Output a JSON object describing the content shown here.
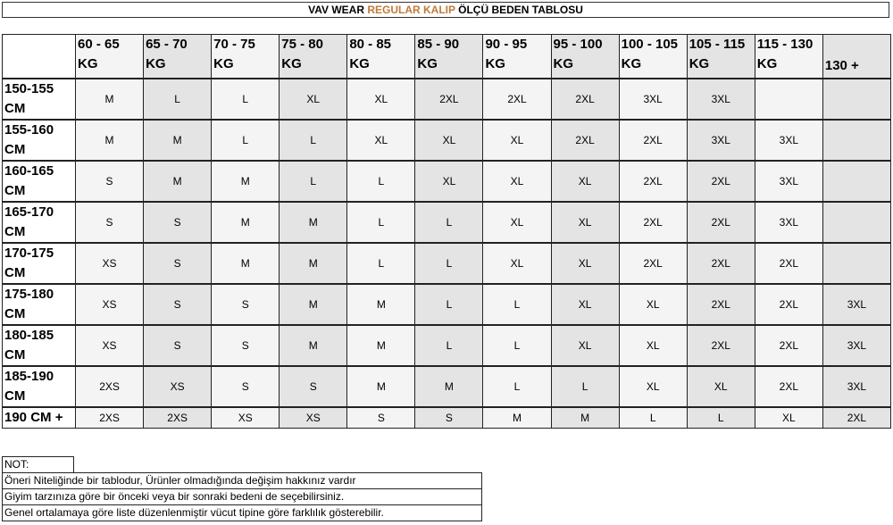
{
  "title": {
    "part1": "VAV WEAR ",
    "accent": "REGULAR KALIP",
    "part2": " ÖLÇÜ BEDEN TABLOSU",
    "accent_color": "#c07a3a"
  },
  "columns": [
    [
      "60 - 65",
      "KG"
    ],
    [
      "65 - 70",
      "KG"
    ],
    [
      "70 - 75",
      "KG"
    ],
    [
      "75 - 80",
      "KG"
    ],
    [
      "80 - 85",
      "KG"
    ],
    [
      "85 - 90",
      "KG"
    ],
    [
      "90 - 95",
      "KG"
    ],
    [
      "95 - 100",
      "KG"
    ],
    [
      "100 - 105",
      "KG"
    ],
    [
      "105 - 115",
      "KG"
    ],
    [
      "115 - 130",
      "KG"
    ],
    [
      "130 +",
      ""
    ]
  ],
  "rows": [
    {
      "label": [
        "150-155",
        "CM"
      ],
      "cells": [
        "M",
        "L",
        "L",
        "XL",
        "XL",
        "2XL",
        "2XL",
        "2XL",
        "3XL",
        "3XL",
        "",
        ""
      ]
    },
    {
      "label": [
        "155-160",
        "CM"
      ],
      "cells": [
        "M",
        "M",
        "L",
        "L",
        "XL",
        "XL",
        "XL",
        "2XL",
        "2XL",
        "3XL",
        "3XL",
        ""
      ]
    },
    {
      "label": [
        "160-165",
        "CM"
      ],
      "cells": [
        "S",
        "M",
        "M",
        "L",
        "L",
        "XL",
        "XL",
        "XL",
        "2XL",
        "2XL",
        "3XL",
        ""
      ]
    },
    {
      "label": [
        "165-170",
        "CM"
      ],
      "cells": [
        "S",
        "S",
        "M",
        "M",
        "L",
        "L",
        "XL",
        "XL",
        "2XL",
        "2XL",
        "3XL",
        ""
      ]
    },
    {
      "label": [
        "170-175",
        "CM"
      ],
      "cells": [
        "XS",
        "S",
        "M",
        "M",
        "L",
        "L",
        "XL",
        "XL",
        "2XL",
        "2XL",
        "2XL",
        ""
      ]
    },
    {
      "label": [
        "175-180",
        "CM"
      ],
      "cells": [
        "XS",
        "S",
        "S",
        "M",
        "M",
        "L",
        "L",
        "XL",
        "XL",
        "2XL",
        "2XL",
        "3XL"
      ]
    },
    {
      "label": [
        "180-185",
        "CM"
      ],
      "cells": [
        "XS",
        "S",
        "S",
        "M",
        "M",
        "L",
        "L",
        "XL",
        "XL",
        "2XL",
        "2XL",
        "3XL"
      ]
    },
    {
      "label": [
        "185-190",
        "CM"
      ],
      "cells": [
        "2XS",
        "XS",
        "S",
        "S",
        "M",
        "M",
        "L",
        "L",
        "XL",
        "XL",
        "2XL",
        "3XL"
      ]
    },
    {
      "label": [
        "190 CM +",
        ""
      ],
      "cells": [
        "2XS",
        "2XS",
        "XS",
        "XS",
        "S",
        "S",
        "M",
        "M",
        "L",
        "L",
        "XL",
        "2XL"
      ]
    }
  ],
  "notes": {
    "heading": "NOT:",
    "lines": [
      "Öneri Niteliğinde bir tablodur, Ürünler olmadığında değişim hakkınız vardır",
      "Giyim tarzınıza göre bir önceki veya bir sonraki bedeni de seçebilirsiniz.",
      "Genel ortalamaya göre liste düzenlenmiştir vücut tipine göre farklılık gösterebilir."
    ]
  }
}
